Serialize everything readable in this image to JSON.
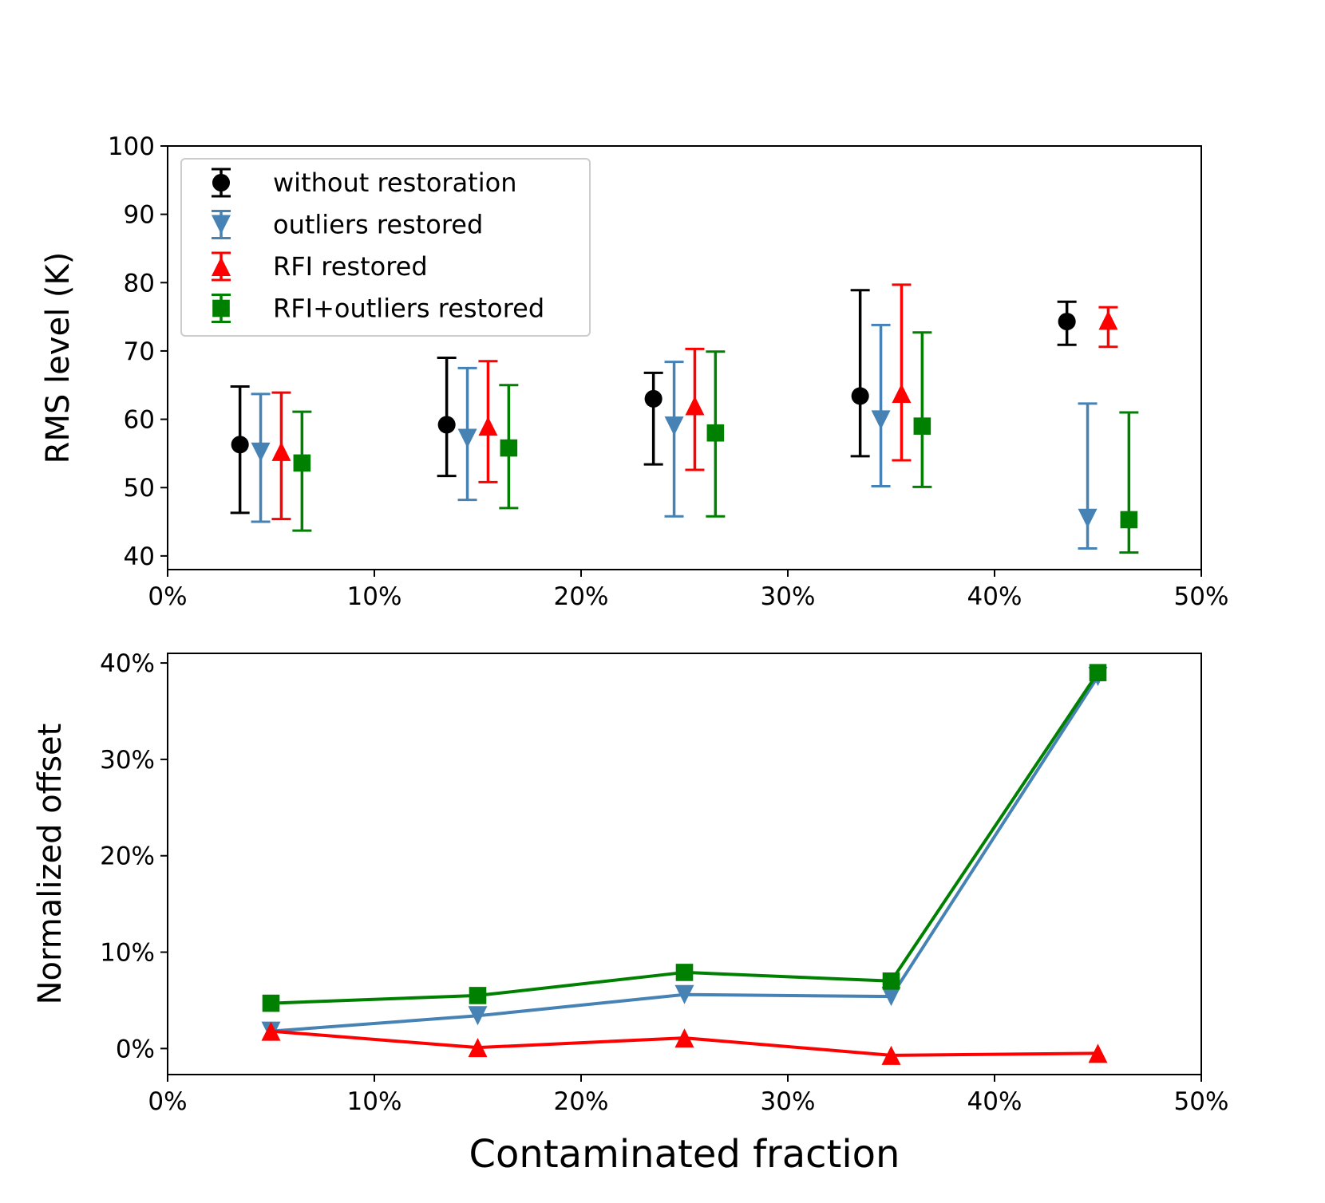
{
  "chart_data": [
    {
      "type": "scatter",
      "subtype": "errorbar",
      "ylabel": "RMS level (K)",
      "xlabel": "",
      "xlim": [
        0,
        50
      ],
      "ylim": [
        38,
        100
      ],
      "xticks": [
        0,
        10,
        20,
        30,
        40,
        50
      ],
      "xtick_labels": [
        "0%",
        "10%",
        "20%",
        "30%",
        "40%",
        "50%"
      ],
      "yticks": [
        40,
        50,
        60,
        70,
        80,
        90,
        100
      ],
      "ytick_labels": [
        "40",
        "50",
        "60",
        "70",
        "80",
        "90",
        "100"
      ],
      "legend_position": "top-left",
      "series": [
        {
          "name": "without restoration",
          "color": "#000000",
          "marker": "circle",
          "x": [
            3.5,
            13.5,
            23.5,
            33.5,
            43.5
          ],
          "y": [
            56.3,
            59.2,
            63.0,
            63.4,
            74.3
          ],
          "err_low": [
            46.3,
            51.7,
            53.4,
            54.6,
            70.9
          ],
          "err_high": [
            64.8,
            69.0,
            66.8,
            78.9,
            77.2
          ]
        },
        {
          "name": "outliers restored",
          "color": "#4682b4",
          "marker": "triangle-down",
          "x": [
            4.5,
            14.5,
            24.5,
            34.5,
            44.5
          ],
          "y": [
            55.2,
            57.2,
            59.0,
            59.9,
            45.5
          ],
          "err_low": [
            45.0,
            48.2,
            45.8,
            50.2,
            41.1
          ],
          "err_high": [
            63.7,
            67.5,
            68.4,
            73.8,
            62.3
          ]
        },
        {
          "name": "RFI restored",
          "color": "#ff0000",
          "marker": "triangle-up",
          "x": [
            5.5,
            15.5,
            25.5,
            35.5,
            45.5
          ],
          "y": [
            55.3,
            59.0,
            62.0,
            63.8,
            74.5
          ],
          "err_low": [
            45.4,
            50.8,
            52.6,
            54.0,
            70.6
          ],
          "err_high": [
            63.9,
            68.5,
            70.3,
            79.7,
            76.4
          ]
        },
        {
          "name": "RFI+outliers restored",
          "color": "#008000",
          "marker": "square",
          "x": [
            6.5,
            16.5,
            26.5,
            36.5,
            46.5
          ],
          "y": [
            53.6,
            55.8,
            58.0,
            59.0,
            45.3
          ],
          "err_low": [
            43.7,
            47.0,
            45.8,
            50.1,
            40.5
          ],
          "err_high": [
            61.1,
            65.0,
            69.9,
            72.7,
            61.0
          ]
        }
      ]
    },
    {
      "type": "line",
      "ylabel": "Normalized offset",
      "xlabel": "Contaminated fraction",
      "xlim": [
        0,
        50
      ],
      "ylim": [
        -2.7,
        41
      ],
      "xticks": [
        0,
        10,
        20,
        30,
        40,
        50
      ],
      "xtick_labels": [
        "0%",
        "10%",
        "20%",
        "30%",
        "40%",
        "50%"
      ],
      "yticks": [
        0,
        10,
        20,
        30,
        40
      ],
      "ytick_labels": [
        "0%",
        "10%",
        "20%",
        "30%",
        "40%"
      ],
      "series": [
        {
          "name": "outliers restored",
          "color": "#4682b4",
          "marker": "triangle-down",
          "x": [
            5,
            15,
            25,
            35,
            45
          ],
          "y": [
            1.8,
            3.4,
            5.6,
            5.4,
            38.6
          ]
        },
        {
          "name": "RFI+outliers restored",
          "color": "#008000",
          "marker": "square",
          "x": [
            5,
            15,
            25,
            35,
            45
          ],
          "y": [
            4.7,
            5.5,
            7.9,
            7.0,
            39.0
          ]
        },
        {
          "name": "RFI restored",
          "color": "#ff0000",
          "marker": "triangle-up",
          "x": [
            5,
            15,
            25,
            35,
            45
          ],
          "y": [
            1.8,
            0.1,
            1.1,
            -0.7,
            -0.5
          ]
        }
      ]
    }
  ]
}
